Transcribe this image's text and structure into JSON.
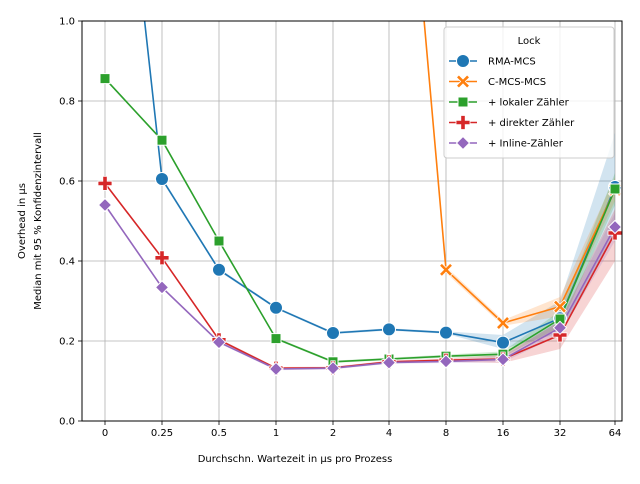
{
  "chart_data": {
    "type": "line",
    "xlabel": "Durchschn. Wartezeit in µs pro Prozess",
    "ylabel_line1": "Overhead in µs",
    "ylabel_line2": "Median mit 95 % Konfidenzintervall",
    "categories": [
      "0",
      "0.25",
      "0.5",
      "1",
      "2",
      "4",
      "8",
      "16",
      "32",
      "64"
    ],
    "ylim": [
      0,
      1.0
    ],
    "yticks": [
      "0.0",
      "0.2",
      "0.4",
      "0.6",
      "0.8",
      "1.0"
    ],
    "grid": true,
    "legend": {
      "title": "Lock",
      "position": "top-right"
    },
    "series": [
      {
        "name": "RMA-MCS",
        "color": "#1f77b4",
        "marker": "circle",
        "x": [
          0,
          0.25,
          0.5,
          1,
          2,
          4,
          8,
          16,
          32,
          64
        ],
        "values": [
          1.9,
          0.605,
          0.378,
          0.283,
          0.22,
          0.229,
          0.221,
          0.196,
          0.257,
          0.585
        ],
        "ci_low": [
          1.9,
          0.6,
          0.374,
          0.28,
          0.217,
          0.226,
          0.218,
          0.18,
          0.22,
          0.47
        ],
        "ci_high": [
          1.9,
          0.61,
          0.382,
          0.286,
          0.223,
          0.232,
          0.224,
          0.215,
          0.3,
          0.72
        ]
      },
      {
        "name": "C-MCS-MCS",
        "color": "#ff7f0e",
        "marker": "x",
        "x": [
          4,
          8,
          16,
          32,
          64
        ],
        "values": [
          2.0,
          0.378,
          0.245,
          0.286,
          0.578
        ],
        "ci_low": [
          2.0,
          0.37,
          0.238,
          0.262,
          0.55
        ],
        "ci_high": [
          2.0,
          0.386,
          0.252,
          0.31,
          0.61
        ]
      },
      {
        "name": "+ lokaler Zähler",
        "color": "#2ca02c",
        "marker": "square",
        "x": [
          0,
          0.25,
          0.5,
          1,
          2,
          4,
          8,
          16,
          32,
          64
        ],
        "values": [
          0.856,
          0.702,
          0.45,
          0.206,
          0.148,
          0.155,
          0.162,
          0.167,
          0.255,
          0.58
        ],
        "ci_low": [
          0.853,
          0.699,
          0.447,
          0.203,
          0.145,
          0.152,
          0.158,
          0.16,
          0.235,
          0.54
        ],
        "ci_high": [
          0.859,
          0.705,
          0.453,
          0.209,
          0.151,
          0.158,
          0.166,
          0.174,
          0.275,
          0.62
        ]
      },
      {
        "name": "+ direkter Zähler",
        "color": "#d62728",
        "marker": "plus",
        "x": [
          0,
          0.25,
          0.5,
          1,
          2,
          4,
          8,
          16,
          32,
          64
        ],
        "values": [
          0.594,
          0.408,
          0.203,
          0.132,
          0.133,
          0.148,
          0.152,
          0.155,
          0.215,
          0.47
        ],
        "ci_low": [
          0.591,
          0.405,
          0.2,
          0.129,
          0.13,
          0.145,
          0.148,
          0.145,
          0.18,
          0.4
        ],
        "ci_high": [
          0.597,
          0.411,
          0.206,
          0.135,
          0.136,
          0.151,
          0.156,
          0.165,
          0.25,
          0.53
        ]
      },
      {
        "name": "+ Inline-Zähler",
        "color": "#9467bd",
        "marker": "diamond",
        "x": [
          0,
          0.25,
          0.5,
          1,
          2,
          4,
          8,
          16,
          32,
          64
        ],
        "values": [
          0.54,
          0.334,
          0.197,
          0.13,
          0.132,
          0.146,
          0.149,
          0.154,
          0.233,
          0.485
        ],
        "ci_low": [
          0.537,
          0.331,
          0.194,
          0.127,
          0.129,
          0.143,
          0.145,
          0.147,
          0.215,
          0.45
        ],
        "ci_high": [
          0.543,
          0.337,
          0.2,
          0.133,
          0.135,
          0.149,
          0.153,
          0.161,
          0.25,
          0.52
        ]
      }
    ]
  }
}
